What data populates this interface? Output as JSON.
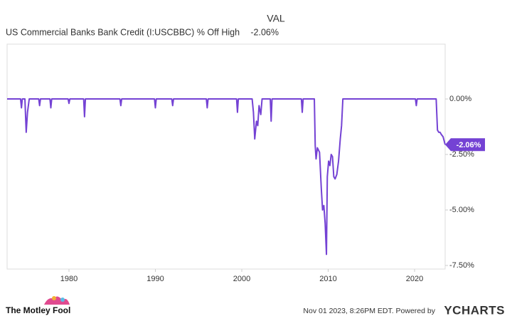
{
  "chart_data": {
    "type": "line",
    "header": {
      "column_label": "VAL"
    },
    "series": [
      {
        "name": "US Commercial Banks Bank Credit (I:USCBBC) % Off High",
        "color": "#7442d4",
        "last_value_label": "-2.06%",
        "x": [
          1972.84,
          1974.4,
          1974.5,
          1974.6,
          1974.9,
          1975.05,
          1975.2,
          1975.4,
          1976.5,
          1976.6,
          1976.7,
          1977.8,
          1977.9,
          1978,
          1979.9,
          1980,
          1980.1,
          1981.7,
          1981.8,
          1981.9,
          1985.9,
          1986,
          1986.1,
          1989.9,
          1990,
          1990.1,
          1991.9,
          1992,
          1992.1,
          1995.9,
          1996,
          1996.1,
          1999.4,
          1999.5,
          1999.6,
          2001.2,
          2001.35,
          2001.5,
          2001.7,
          2001.85,
          2002.0,
          2002.2,
          2002.35,
          2003.3,
          2003.4,
          2003.5,
          2006.9,
          2007,
          2007.1,
          2008.4,
          2008.5,
          2008.6,
          2008.75,
          2009.0,
          2009.2,
          2009.35,
          2009.5,
          2009.65,
          2009.8,
          2009.9,
          2010.05,
          2010.2,
          2010.35,
          2010.5,
          2010.65,
          2010.8,
          2011.0,
          2011.2,
          2011.4,
          2011.55,
          2011.7,
          2020.1,
          2020.2,
          2020.3,
          2022.5,
          2022.65,
          2022.8,
          2022.95,
          2023.1,
          2023.3,
          2023.54
        ],
        "values": [
          0,
          0,
          -0.4,
          0,
          0,
          -1.5,
          -0.6,
          0,
          0,
          -0.3,
          0,
          0,
          -0.4,
          0,
          0,
          -0.2,
          0,
          0,
          -0.8,
          0,
          0,
          -0.3,
          0,
          0,
          -0.4,
          0,
          0,
          -0.3,
          0,
          0,
          -0.4,
          0,
          0,
          -0.6,
          0,
          0,
          -0.6,
          -1.8,
          -1.0,
          -1.2,
          -0.3,
          -0.7,
          0,
          0,
          -1.0,
          0,
          0,
          -0.6,
          0,
          0,
          -2.1,
          -2.7,
          -2.2,
          -2.4,
          -4.0,
          -5.0,
          -4.8,
          -5.6,
          -7.0,
          -3.5,
          -2.8,
          -3.0,
          -2.5,
          -2.6,
          -3.5,
          -3.6,
          -3.4,
          -2.8,
          -1.8,
          -1.2,
          0,
          0,
          -0.3,
          0,
          0,
          -1.4,
          -1.5,
          -1.5,
          -1.6,
          -1.7,
          -2.06
        ]
      }
    ],
    "xlim": [
      1972.84,
      2023.54
    ],
    "xticks": [
      1980,
      1990,
      2000,
      2010,
      2020
    ],
    "ylim": [
      -7.66,
      2.47
    ],
    "yticks": [
      {
        "value": 0,
        "label": "0.00%"
      },
      {
        "value": -2.5,
        "label": "-2.50%"
      },
      {
        "value": -5,
        "label": "-5.00%"
      },
      {
        "value": -7.5,
        "label": "-7.50%"
      }
    ],
    "grid": false
  },
  "footer": {
    "brand": "The Motley Fool",
    "timestamp": "Nov 01 2023, 8:26PM EDT.  Powered by",
    "provider": "YCHARTS"
  }
}
